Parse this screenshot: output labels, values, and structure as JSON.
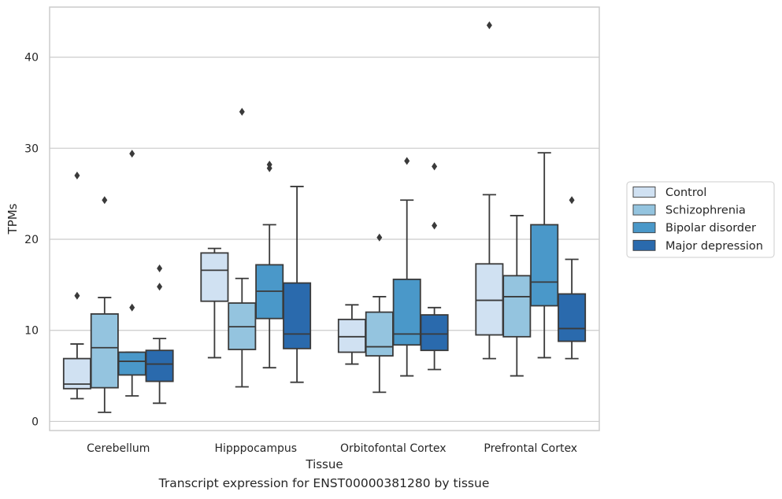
{
  "caption": "Transcript expression for ENST00000381280 by tissue",
  "chart_data": {
    "type": "boxplot",
    "title": "",
    "xlabel": "Tissue",
    "ylabel": "TPMs",
    "ylim": [
      -1,
      45.5
    ],
    "yticks": [
      0,
      10,
      20,
      30,
      40
    ],
    "grid": true,
    "legend_position": "right",
    "categories": [
      "Cerebellum",
      "Hipppocampus",
      "Orbitofontal Cortex",
      "Prefrontal Cortex"
    ],
    "series": [
      {
        "name": "Control",
        "color": "#d0e1f2",
        "boxes": [
          {
            "whislo": 2.5,
            "q1": 3.6,
            "med": 4.1,
            "q3": 6.9,
            "whishi": 8.5,
            "fliers": [
              13.8,
              27.0
            ]
          },
          {
            "whislo": 7.0,
            "q1": 13.2,
            "med": 16.6,
            "q3": 18.5,
            "whishi": 19.0,
            "fliers": []
          },
          {
            "whislo": 6.3,
            "q1": 7.6,
            "med": 9.3,
            "q3": 11.2,
            "whishi": 12.8,
            "fliers": []
          },
          {
            "whislo": 6.9,
            "q1": 9.5,
            "med": 13.3,
            "q3": 17.3,
            "whishi": 24.9,
            "fliers": [
              43.5
            ]
          }
        ]
      },
      {
        "name": "Schizophrenia",
        "color": "#94c4df",
        "boxes": [
          {
            "whislo": 1.0,
            "q1": 3.7,
            "med": 8.1,
            "q3": 11.8,
            "whishi": 13.6,
            "fliers": [
              24.3
            ]
          },
          {
            "whislo": 3.8,
            "q1": 7.9,
            "med": 10.4,
            "q3": 13.0,
            "whishi": 15.7,
            "fliers": [
              34.0
            ]
          },
          {
            "whislo": 3.2,
            "q1": 7.2,
            "med": 8.2,
            "q3": 12.0,
            "whishi": 13.7,
            "fliers": [
              20.2
            ]
          },
          {
            "whislo": 5.0,
            "q1": 9.3,
            "med": 13.7,
            "q3": 16.0,
            "whishi": 22.6,
            "fliers": []
          }
        ]
      },
      {
        "name": "Bipolar disorder",
        "color": "#4a98c9",
        "boxes": [
          {
            "whislo": 2.8,
            "q1": 5.1,
            "med": 6.6,
            "q3": 7.6,
            "whishi": 7.6,
            "fliers": [
              12.5,
              29.4
            ]
          },
          {
            "whislo": 5.9,
            "q1": 11.3,
            "med": 14.3,
            "q3": 17.2,
            "whishi": 21.6,
            "fliers": [
              27.8,
              28.2
            ]
          },
          {
            "whislo": 5.0,
            "q1": 8.4,
            "med": 9.6,
            "q3": 15.6,
            "whishi": 24.3,
            "fliers": [
              28.6
            ]
          },
          {
            "whislo": 7.0,
            "q1": 12.7,
            "med": 15.3,
            "q3": 21.6,
            "whishi": 29.5,
            "fliers": []
          }
        ]
      },
      {
        "name": "Major depression",
        "color": "#2a6aad",
        "boxes": [
          {
            "whislo": 2.0,
            "q1": 4.4,
            "med": 6.3,
            "q3": 7.8,
            "whishi": 9.1,
            "fliers": [
              14.8,
              16.8
            ]
          },
          {
            "whislo": 4.3,
            "q1": 8.0,
            "med": 9.6,
            "q3": 15.2,
            "whishi": 25.8,
            "fliers": []
          },
          {
            "whislo": 5.7,
            "q1": 7.8,
            "med": 9.6,
            "q3": 11.7,
            "whishi": 12.5,
            "fliers": [
              21.5,
              28.0
            ]
          },
          {
            "whislo": 6.9,
            "q1": 8.8,
            "med": 10.2,
            "q3": 14.0,
            "whishi": 17.8,
            "fliers": [
              24.3
            ]
          }
        ]
      }
    ]
  }
}
